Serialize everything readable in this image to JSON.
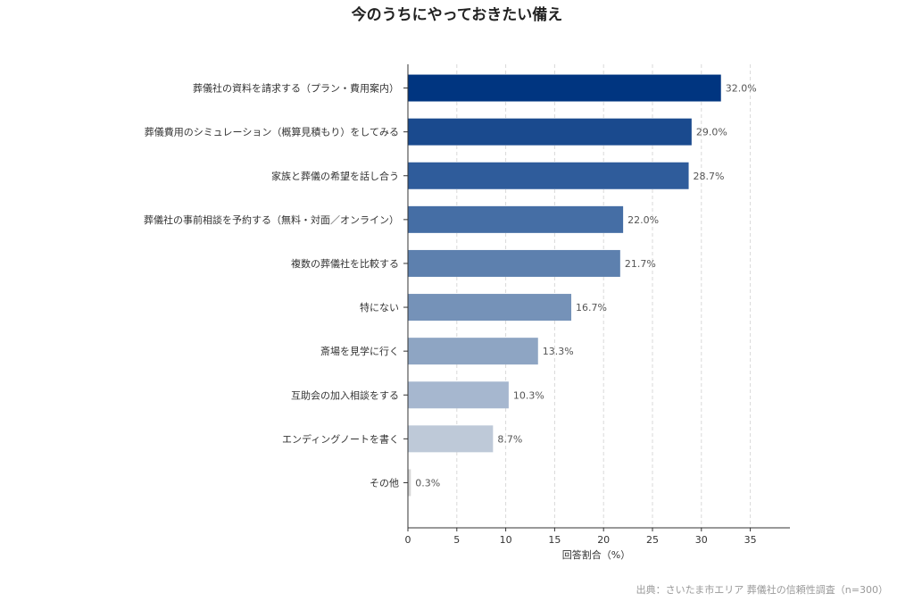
{
  "chart_data": {
    "type": "bar",
    "orientation": "horizontal",
    "title": "今のうちにやっておきたい備え",
    "xlabel": "回答割合（%）",
    "ylabel": "",
    "xlim": [
      0,
      39
    ],
    "xticks": [
      0,
      5,
      10,
      15,
      20,
      25,
      30,
      35
    ],
    "grid": "vertical dashed",
    "categories": [
      "葬儀社の資料を請求する（プラン・費用案内）",
      "葬儀費用のシミュレーション（概算見積もり）をしてみる",
      "家族と葬儀の希望を話し合う",
      "葬儀社の事前相談を予約する（無料・対面／オンライン）",
      "複数の葬儀社を比較する",
      "特にない",
      "斎場を見学に行く",
      "互助会の加入相談をする",
      "エンディングノートを書く",
      "その他"
    ],
    "values": [
      32.0,
      29.0,
      28.7,
      22.0,
      21.7,
      16.7,
      13.3,
      10.3,
      8.7,
      0.3
    ],
    "value_labels": [
      "32.0%",
      "29.0%",
      "28.7%",
      "22.0%",
      "21.7%",
      "16.7%",
      "13.3%",
      "10.3%",
      "8.7%",
      "0.3%"
    ],
    "colors": [
      "#003580",
      "#1a4a8e",
      "#2f5c9b",
      "#456ea5",
      "#5d80ae",
      "#7592b8",
      "#8ea5c3",
      "#a6b7cf",
      "#bec9d8",
      "#d6d6d6"
    ]
  },
  "source": "出典：さいたま市エリア 葬儀社の信頼性調査（n=300）"
}
